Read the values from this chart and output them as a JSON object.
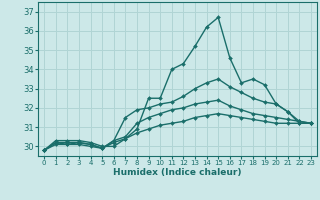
{
  "xlabel": "Humidex (Indice chaleur)",
  "ylabel": "",
  "background_color": "#cce8e8",
  "grid_color": "#b0d4d4",
  "line_color": "#1a6e6a",
  "xlim": [
    -0.5,
    23.5
  ],
  "ylim": [
    29.5,
    37.5
  ],
  "xticks": [
    0,
    1,
    2,
    3,
    4,
    5,
    6,
    7,
    8,
    9,
    10,
    11,
    12,
    13,
    14,
    15,
    16,
    17,
    18,
    19,
    20,
    21,
    22,
    23
  ],
  "yticks": [
    30,
    31,
    32,
    33,
    34,
    35,
    36,
    37
  ],
  "lines": [
    {
      "x": [
        0,
        1,
        2,
        3,
        4,
        5,
        6,
        7,
        8,
        9,
        10,
        11,
        12,
        13,
        14,
        15,
        16,
        17,
        18,
        19,
        20,
        21,
        22,
        23
      ],
      "y": [
        29.8,
        30.3,
        30.3,
        30.3,
        30.2,
        30.0,
        30.0,
        30.4,
        30.9,
        32.5,
        32.5,
        34.0,
        34.3,
        35.2,
        36.2,
        36.7,
        34.6,
        33.3,
        33.5,
        33.2,
        32.2,
        31.8,
        31.2,
        31.2
      ]
    },
    {
      "x": [
        0,
        1,
        2,
        3,
        4,
        5,
        6,
        7,
        8,
        9,
        10,
        11,
        12,
        13,
        14,
        15,
        16,
        17,
        18,
        19,
        20,
        21,
        22,
        23
      ],
      "y": [
        29.8,
        30.2,
        30.2,
        30.2,
        30.1,
        29.9,
        30.3,
        31.5,
        31.9,
        32.0,
        32.2,
        32.3,
        32.6,
        33.0,
        33.3,
        33.5,
        33.1,
        32.8,
        32.5,
        32.3,
        32.2,
        31.8,
        31.3,
        31.2
      ]
    },
    {
      "x": [
        0,
        1,
        2,
        3,
        4,
        5,
        6,
        7,
        8,
        9,
        10,
        11,
        12,
        13,
        14,
        15,
        16,
        17,
        18,
        19,
        20,
        21,
        22,
        23
      ],
      "y": [
        29.8,
        30.2,
        30.1,
        30.2,
        30.1,
        29.9,
        30.3,
        30.5,
        31.2,
        31.5,
        31.7,
        31.9,
        32.0,
        32.2,
        32.3,
        32.4,
        32.1,
        31.9,
        31.7,
        31.6,
        31.5,
        31.4,
        31.3,
        31.2
      ]
    },
    {
      "x": [
        0,
        1,
        2,
        3,
        4,
        5,
        6,
        7,
        8,
        9,
        10,
        11,
        12,
        13,
        14,
        15,
        16,
        17,
        18,
        19,
        20,
        21,
        22,
        23
      ],
      "y": [
        29.8,
        30.1,
        30.1,
        30.1,
        30.0,
        29.9,
        30.2,
        30.4,
        30.7,
        30.9,
        31.1,
        31.2,
        31.3,
        31.5,
        31.6,
        31.7,
        31.6,
        31.5,
        31.4,
        31.3,
        31.2,
        31.2,
        31.2,
        31.2
      ]
    }
  ]
}
